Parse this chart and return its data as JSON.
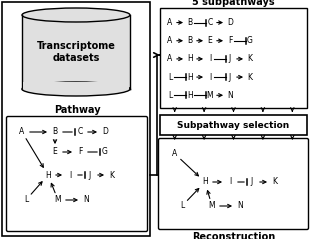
{
  "bg_color": "#ffffff",
  "title_5sp": "5 subpathways",
  "pathway_label": "Pathway",
  "reconstruction_label": "Reconstruction",
  "subpathway_selection": "Subpathway selection",
  "transcriptome_label": "Transcriptome\ndatasets",
  "sp_lines": [
    [
      "A",
      "r",
      "B",
      "i",
      "C",
      "r",
      "D"
    ],
    [
      "A",
      "r",
      "B",
      "r",
      "E",
      "r",
      "F",
      "i",
      "G"
    ],
    [
      "A",
      "r",
      "H",
      "r",
      "I",
      "i",
      "J",
      "r",
      "K"
    ],
    [
      "L",
      "i",
      "H",
      "r",
      "I",
      "i",
      "J",
      "r",
      "K"
    ],
    [
      "L",
      "i",
      "H",
      "i",
      "M",
      "r",
      "N"
    ]
  ]
}
